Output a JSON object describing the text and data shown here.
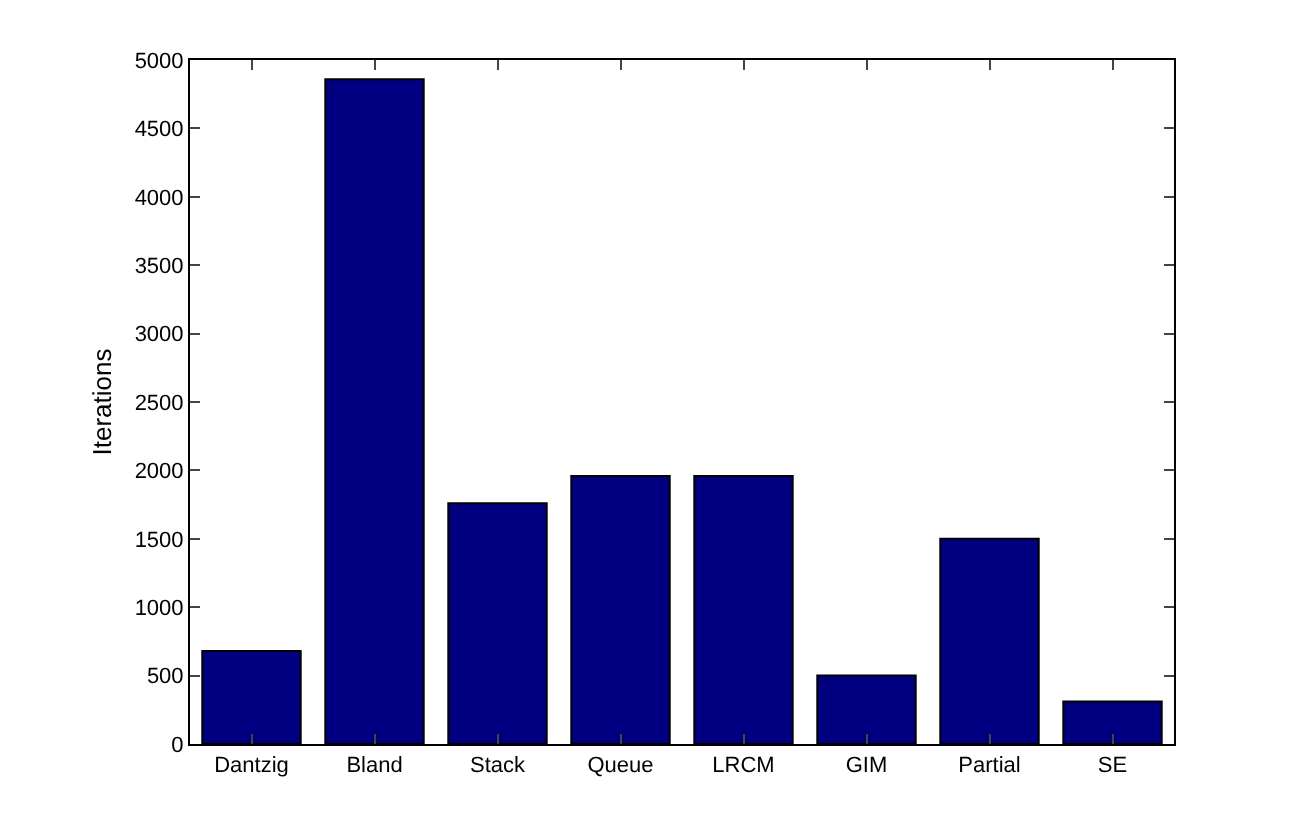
{
  "chart_data": {
    "type": "bar",
    "ylabel": "Iterations",
    "categories": [
      "Dantzig",
      "Bland",
      "Stack",
      "Queue",
      "LRCM",
      "GIM",
      "Partial",
      "SE"
    ],
    "values": [
      680,
      4860,
      1760,
      1960,
      1960,
      500,
      1500,
      310
    ],
    "color": "#000080",
    "ylim": [
      0,
      5000
    ],
    "yticks": [
      0,
      500,
      1000,
      1500,
      2000,
      2500,
      3000,
      3500,
      4000,
      4500,
      5000
    ],
    "grid": false
  }
}
